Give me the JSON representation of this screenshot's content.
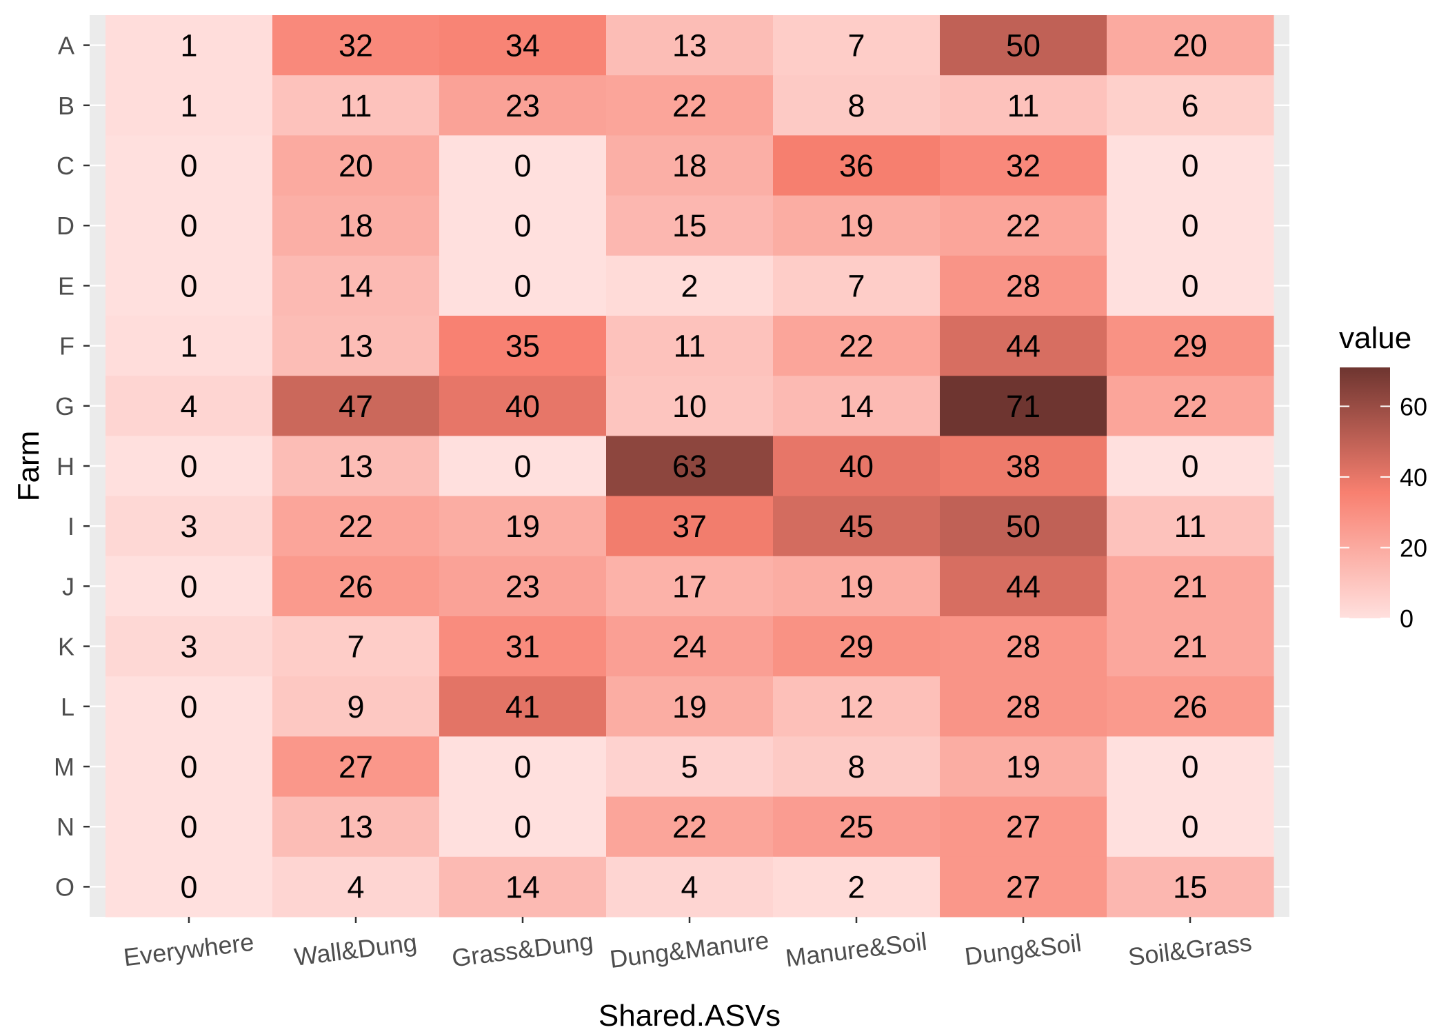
{
  "chart_data": {
    "type": "heatmap",
    "title": "",
    "xlabel": "Shared.ASVs",
    "ylabel": "Farm",
    "x_categories": [
      "Everywhere",
      "Wall&Dung",
      "Grass&Dung",
      "Dung&Manure",
      "Manure&Soil",
      "Dung&Soil",
      "Soil&Grass"
    ],
    "y_categories": [
      "A",
      "B",
      "C",
      "D",
      "E",
      "F",
      "G",
      "H",
      "I",
      "J",
      "K",
      "L",
      "M",
      "N",
      "O"
    ],
    "values": [
      [
        1,
        32,
        34,
        13,
        7,
        50,
        20
      ],
      [
        1,
        11,
        23,
        22,
        8,
        11,
        6
      ],
      [
        0,
        20,
        0,
        18,
        36,
        32,
        0
      ],
      [
        0,
        18,
        0,
        15,
        19,
        22,
        0
      ],
      [
        0,
        14,
        0,
        2,
        7,
        28,
        0
      ],
      [
        1,
        13,
        35,
        11,
        22,
        44,
        29
      ],
      [
        4,
        47,
        40,
        10,
        14,
        71,
        22
      ],
      [
        0,
        13,
        0,
        63,
        40,
        38,
        0
      ],
      [
        3,
        22,
        19,
        37,
        45,
        50,
        11
      ],
      [
        0,
        26,
        23,
        17,
        19,
        44,
        21
      ],
      [
        3,
        7,
        31,
        24,
        29,
        28,
        21
      ],
      [
        0,
        9,
        41,
        19,
        12,
        28,
        26
      ],
      [
        0,
        27,
        0,
        5,
        8,
        19,
        0
      ],
      [
        0,
        13,
        0,
        22,
        25,
        27,
        0
      ],
      [
        0,
        4,
        14,
        4,
        2,
        27,
        15
      ]
    ],
    "legend": {
      "title": "value",
      "ticks": [
        0,
        20,
        40,
        60
      ],
      "range": [
        0,
        71
      ],
      "colors": {
        "low": "#FFE0DE",
        "mid": "#F88070",
        "high": "#6E3530"
      }
    },
    "panel_background": "#EBEBEB",
    "grid": true
  }
}
